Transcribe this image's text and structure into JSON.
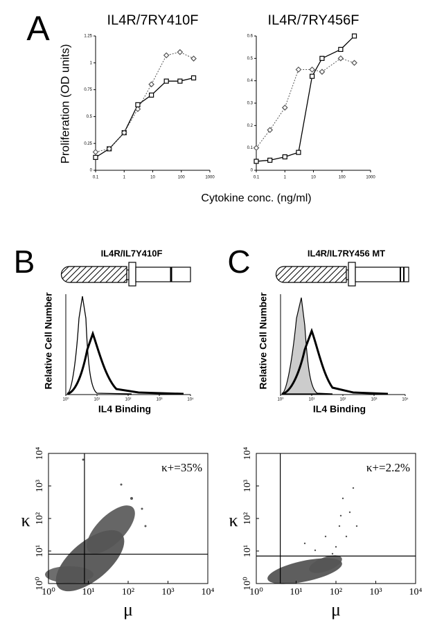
{
  "figure": {
    "panel_labels": [
      "A",
      "B",
      "C"
    ],
    "y_label": "Proliferation (OD units)",
    "x_label": "Cytokine conc. (ng/ml)"
  },
  "chart_data": [
    {
      "type": "line",
      "title": "IL4R/7RY410F",
      "x_scale": "log",
      "xlim": [
        0.1,
        1000
      ],
      "xticks": [
        0.1,
        1,
        10,
        100,
        1000
      ],
      "ylim": [
        0,
        1.25
      ],
      "yticks": [
        0,
        0.25,
        0.5,
        0.75,
        1,
        1.25
      ],
      "x": [
        0.1,
        0.3,
        1,
        3,
        9,
        30,
        90,
        270
      ],
      "series": [
        {
          "color": "#000000",
          "style": "solid",
          "marker": "square",
          "values": [
            0.12,
            0.2,
            0.35,
            0.61,
            0.7,
            0.83,
            0.83,
            0.86
          ]
        },
        {
          "color": "#555555",
          "style": "dotted",
          "marker": "diamond",
          "values": [
            0.17,
            0.2,
            0.35,
            0.57,
            0.8,
            1.07,
            1.1,
            1.04
          ]
        }
      ]
    },
    {
      "type": "line",
      "title": "IL4R/7RY456F",
      "x_scale": "log",
      "xlim": [
        0.1,
        1000
      ],
      "xticks": [
        0.1,
        1,
        10,
        100,
        1000
      ],
      "ylim": [
        0,
        0.6
      ],
      "yticks": [
        0,
        0.1,
        0.2,
        0.3,
        0.4,
        0.5,
        0.6
      ],
      "x": [
        0.1,
        0.3,
        1,
        3,
        9,
        20,
        90,
        270
      ],
      "series": [
        {
          "color": "#000000",
          "style": "solid",
          "marker": "square",
          "values": [
            0.04,
            0.045,
            0.06,
            0.08,
            0.42,
            0.5,
            0.54,
            0.6
          ]
        },
        {
          "color": "#555555",
          "style": "dotted",
          "marker": "diamond",
          "values": [
            0.1,
            0.18,
            0.28,
            0.45,
            0.45,
            0.44,
            0.5,
            0.48
          ]
        }
      ]
    },
    {
      "type": "histogram-overlay",
      "title": "IL4R/IL7Y410F",
      "ylabel": "Relative Cell Number",
      "xlabel": "IL4 Binding",
      "x_scale": "log",
      "xlim": [
        1,
        10000
      ],
      "xticks": [
        {
          "value": 1,
          "label": "10⁰"
        },
        {
          "value": 10,
          "label": "10¹"
        },
        {
          "value": 100,
          "label": "10²"
        },
        {
          "value": 1000,
          "label": "10³"
        },
        {
          "value": 10000,
          "label": "10⁴"
        }
      ]
    },
    {
      "type": "histogram-overlay",
      "title": "IL4R/IL7RY456 MT",
      "ylabel": "Relative Cell Number",
      "xlabel": "IL4 Binding",
      "x_scale": "log",
      "xlim": [
        1,
        10000
      ],
      "xticks": [
        {
          "value": 1,
          "label": "10⁰"
        },
        {
          "value": 10,
          "label": "10¹"
        },
        {
          "value": 100,
          "label": "10²"
        },
        {
          "value": 1000,
          "label": "10³"
        },
        {
          "value": 10000,
          "label": "10⁴"
        }
      ]
    },
    {
      "type": "scatter",
      "ylabel": "κ",
      "xlabel": "μ",
      "x_scale": "log",
      "y_scale": "log",
      "xlim": [
        1,
        10000
      ],
      "ylim": [
        1,
        10000
      ],
      "xticks": [
        {
          "value": 1,
          "label": "10⁰"
        },
        {
          "value": 10,
          "label": "10¹"
        },
        {
          "value": 100,
          "label": "10²"
        },
        {
          "value": 1000,
          "label": "10³"
        },
        {
          "value": 10000,
          "label": "10⁴"
        }
      ],
      "yticks": [
        {
          "value": 1,
          "label": "10⁰"
        },
        {
          "value": 10,
          "label": "10¹"
        },
        {
          "value": 100,
          "label": "10²"
        },
        {
          "value": 1000,
          "label": "10³"
        },
        {
          "value": 10000,
          "label": "10⁴"
        }
      ],
      "quadrant_x": 8,
      "quadrant_y": 8,
      "annotation": "κ+=35%"
    },
    {
      "type": "scatter",
      "ylabel": "κ",
      "xlabel": "μ",
      "x_scale": "log",
      "y_scale": "log",
      "xlim": [
        1,
        10000
      ],
      "ylim": [
        1,
        10000
      ],
      "xticks": [
        {
          "value": 1,
          "label": "10⁰"
        },
        {
          "value": 10,
          "label": "10¹"
        },
        {
          "value": 100,
          "label": "10²"
        },
        {
          "value": 1000,
          "label": "10³"
        },
        {
          "value": 10000,
          "label": "10⁴"
        }
      ],
      "yticks": [
        {
          "value": 1,
          "label": "10⁰"
        },
        {
          "value": 10,
          "label": "10¹"
        },
        {
          "value": 100,
          "label": "10²"
        },
        {
          "value": 1000,
          "label": "10³"
        },
        {
          "value": 10000,
          "label": "10⁴"
        }
      ],
      "quadrant_x": 4,
      "quadrant_y": 7,
      "annotation": "κ+=2.2%"
    }
  ]
}
